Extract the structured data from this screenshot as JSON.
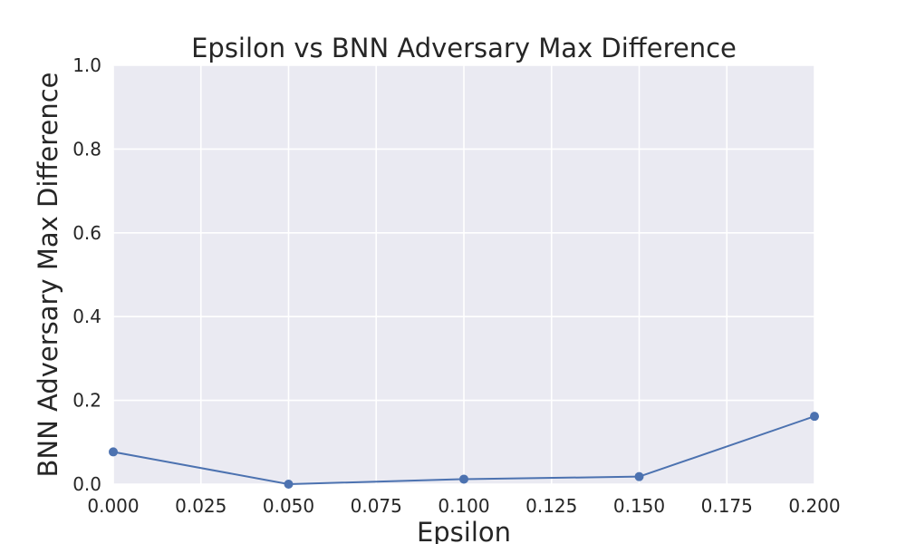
{
  "chart_data": {
    "type": "line",
    "title": "Epsilon vs BNN Adversary Max Difference",
    "xlabel": "Epsilon",
    "ylabel": "BNN Adversary Max Difference",
    "x": [
      0.0,
      0.05,
      0.1,
      0.15,
      0.2
    ],
    "series": [
      {
        "values": [
          0.077,
          0.0,
          0.012,
          0.018,
          0.162
        ],
        "color": "#4c72b0",
        "marker": "circle"
      }
    ],
    "xlim": [
      0.0,
      0.2
    ],
    "ylim": [
      0.0,
      1.0
    ],
    "xticks": [
      0.0,
      0.025,
      0.05,
      0.075,
      0.1,
      0.125,
      0.15,
      0.175,
      0.2
    ],
    "xtick_labels": [
      "0.000",
      "0.025",
      "0.050",
      "0.075",
      "0.100",
      "0.125",
      "0.150",
      "0.175",
      "0.200"
    ],
    "yticks": [
      0.0,
      0.2,
      0.4,
      0.6,
      0.8,
      1.0
    ],
    "ytick_labels": [
      "0.0",
      "0.2",
      "0.4",
      "0.6",
      "0.8",
      "1.0"
    ],
    "grid": true,
    "legend": "none",
    "background_color": "#eaeaf2",
    "grid_color": "#ffffff"
  }
}
